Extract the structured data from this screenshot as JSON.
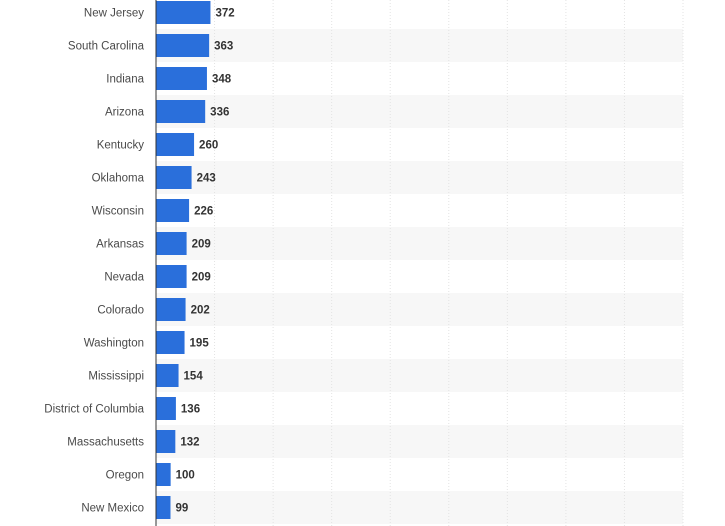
{
  "chart_data": {
    "type": "bar",
    "orientation": "horizontal",
    "categories": [
      "New Jersey",
      "South Carolina",
      "Indiana",
      "Arizona",
      "Kentucky",
      "Oklahoma",
      "Wisconsin",
      "Arkansas",
      "Nevada",
      "Colorado",
      "Washington",
      "Mississippi",
      "District of Columbia",
      "Massachusetts",
      "Oregon",
      "New Mexico"
    ],
    "values": [
      372,
      363,
      348,
      336,
      260,
      243,
      226,
      209,
      209,
      202,
      195,
      154,
      136,
      132,
      100,
      99
    ],
    "xlim": [
      0,
      3600
    ],
    "grid": true,
    "bar_color": "#2a6fdb",
    "stripe_color": "#f7f7f7",
    "grid_color": "#e3e3e3",
    "axis_color": "#333333"
  }
}
